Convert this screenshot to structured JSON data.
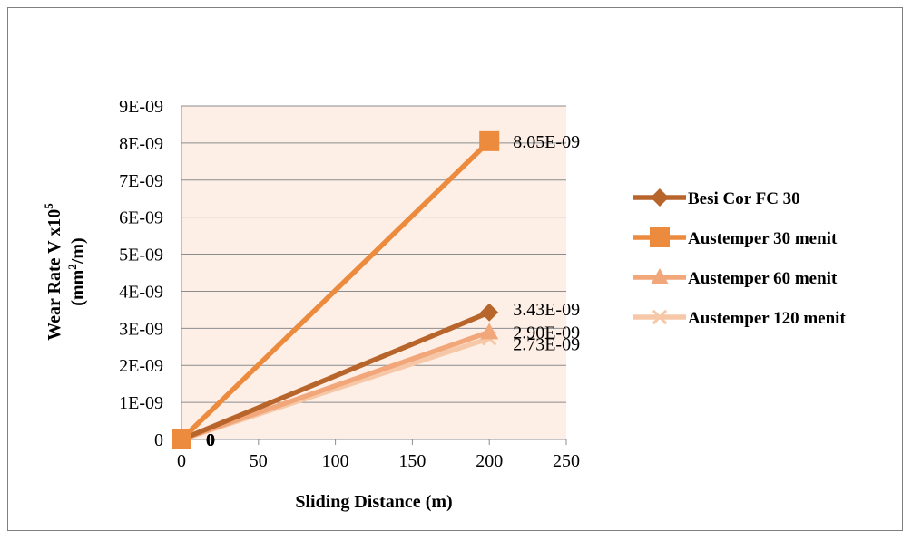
{
  "chart_data": {
    "type": "line",
    "xlabel": "Sliding Distance (m)",
    "ylabel_line1": "Wear Rate  V x10",
    "ylabel_sup": "5",
    "ylabel_line2_pre": "(mm",
    "ylabel_line2_sup": "2",
    "ylabel_line2_post": "/m)",
    "xlim": [
      0,
      250
    ],
    "ylim": [
      0,
      9e-09
    ],
    "x_ticks": [
      "0",
      "50",
      "100",
      "150",
      "200",
      "250"
    ],
    "x_tick_values": [
      0,
      50,
      100,
      150,
      200,
      250
    ],
    "y_ticks": [
      "0",
      "1E-09",
      "2E-09",
      "3E-09",
      "4E-09",
      "5E-09",
      "6E-09",
      "7E-09",
      "8E-09",
      "9E-09"
    ],
    "y_tick_values": [
      0,
      1e-09,
      2e-09,
      3e-09,
      4e-09,
      5e-09,
      6e-09,
      7e-09,
      8e-09,
      9e-09
    ],
    "grid": true,
    "legend_position": "right",
    "plot_background": "#fdeee6",
    "series": [
      {
        "name": "Besi Cor FC 30",
        "x": [
          0,
          200
        ],
        "y": [
          0,
          3.43e-09
        ],
        "labels": [
          "0",
          "3.43E-09"
        ],
        "color": "#b8652b",
        "marker": "diamond"
      },
      {
        "name": "Austemper 30 menit",
        "x": [
          0,
          200
        ],
        "y": [
          0,
          8.05e-09
        ],
        "labels": [
          "0",
          "8.05E-09"
        ],
        "color": "#ec8b3e",
        "marker": "square"
      },
      {
        "name": "Austemper 60 menit",
        "x": [
          0,
          200
        ],
        "y": [
          0,
          2.9e-09
        ],
        "labels": [
          "0",
          "2.90E-09"
        ],
        "color": "#f2a77a",
        "marker": "triangle"
      },
      {
        "name": "Austemper 120 menit",
        "x": [
          0,
          200
        ],
        "y": [
          0,
          2.73e-09
        ],
        "labels": [
          "0",
          "2.73E-09"
        ],
        "color": "#f6c8a8",
        "marker": "x"
      }
    ]
  }
}
